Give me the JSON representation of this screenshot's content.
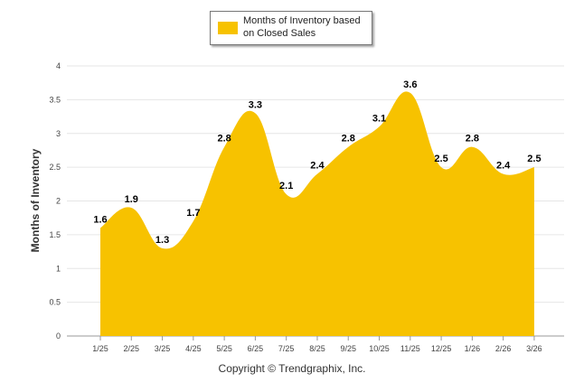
{
  "chart_data": {
    "type": "area",
    "title": "",
    "xlabel": "",
    "ylabel": "Months of Inventory",
    "ylim": [
      0,
      4
    ],
    "yticks": [
      "0",
      "0.5",
      "1",
      "1.5",
      "2",
      "2.5",
      "3",
      "3.5",
      "4"
    ],
    "grid": true,
    "legend_position": "top-center",
    "categories": [
      "1/25",
      "2/25",
      "3/25",
      "4/25",
      "5/25",
      "6/25",
      "7/25",
      "8/25",
      "9/25",
      "10/25",
      "11/25",
      "12/25",
      "1/26",
      "2/26",
      "3/26"
    ],
    "series": [
      {
        "name": "Months of Inventory based on Closed Sales",
        "color": "#F7C200",
        "values": [
          1.6,
          1.9,
          1.3,
          1.7,
          2.8,
          3.3,
          2.1,
          2.4,
          2.8,
          3.1,
          3.6,
          2.5,
          2.8,
          2.4,
          2.5
        ],
        "labels": [
          "1.6",
          "1.9",
          "1.3",
          "1.7",
          "2.8",
          "3.3",
          "2.1",
          "2.4",
          "2.8",
          "3.1",
          "3.6",
          "2.5",
          "2.8",
          "2.4",
          "2.5"
        ]
      }
    ]
  },
  "legend": {
    "line1": "Months of Inventory based",
    "line2": "on Closed Sales",
    "color": "#F7C200"
  },
  "footer": {
    "copyright": "Copyright © Trendgraphix, Inc."
  }
}
